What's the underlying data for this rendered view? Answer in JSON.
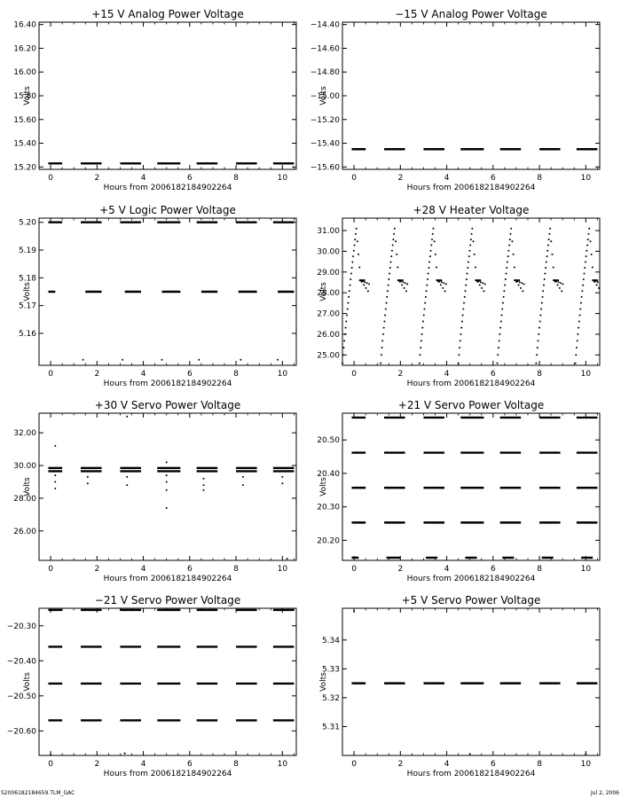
{
  "footer": {
    "source_file": "S2006182184659.TLM_GAC",
    "date": "Jul  2, 2006"
  },
  "chart_data": [
    {
      "type": "scatter",
      "title": "+15 V Analog Power Voltage",
      "xlabel": "Hours from 2006182184902264",
      "ylabel": "Volts",
      "xlim": [
        -0.5,
        10.6
      ],
      "ylim": [
        15.18,
        16.42
      ],
      "xticks": [
        0,
        2,
        4,
        6,
        8,
        10
      ],
      "yticks": [
        15.2,
        15.4,
        15.6,
        15.8,
        16.0,
        16.2,
        16.4
      ],
      "ytick_decimals": 2,
      "segments": [
        {
          "y": 15.23,
          "x": [
            [
              -0.1,
              0.5
            ],
            [
              1.3,
              2.2
            ],
            [
              3.0,
              3.9
            ],
            [
              4.6,
              5.6
            ],
            [
              6.3,
              7.2
            ],
            [
              8.0,
              8.9
            ],
            [
              9.6,
              10.5
            ]
          ]
        }
      ],
      "points": []
    },
    {
      "type": "scatter",
      "title": "−15 V Analog Power Voltage",
      "xlabel": "Hours from 2006182184902264",
      "ylabel": "Volts",
      "xlim": [
        -0.5,
        10.6
      ],
      "ylim": [
        -15.62,
        -14.38
      ],
      "xticks": [
        0,
        2,
        4,
        6,
        8,
        10
      ],
      "yticks": [
        -15.6,
        -15.4,
        -15.2,
        -15.0,
        -14.8,
        -14.6,
        -14.4
      ],
      "ytick_decimals": 2,
      "segments": [
        {
          "y": -15.45,
          "x": [
            [
              -0.1,
              0.5
            ],
            [
              1.3,
              2.2
            ],
            [
              3.0,
              3.9
            ],
            [
              4.6,
              5.6
            ],
            [
              6.3,
              7.2
            ],
            [
              8.0,
              8.9
            ],
            [
              9.6,
              10.5
            ]
          ]
        }
      ],
      "points": []
    },
    {
      "type": "scatter",
      "title": "+5 V Logic Power Voltage",
      "xlabel": "Hours from 2006182184902264",
      "ylabel": "Volts",
      "xlim": [
        -0.5,
        10.6
      ],
      "ylim": [
        5.1485,
        5.2015
      ],
      "xticks": [
        0,
        2,
        4,
        6,
        8,
        10
      ],
      "yticks": [
        5.16,
        5.17,
        5.18,
        5.19,
        5.2
      ],
      "ytick_decimals": 2,
      "segments": [
        {
          "y": 5.2,
          "x": [
            [
              -0.1,
              0.5
            ],
            [
              1.3,
              2.2
            ],
            [
              3.0,
              3.9
            ],
            [
              4.6,
              5.6
            ],
            [
              6.3,
              7.2
            ],
            [
              8.0,
              8.9
            ],
            [
              9.6,
              10.5
            ]
          ]
        },
        {
          "y": 5.175,
          "x": [
            [
              -0.1,
              0.2
            ],
            [
              1.5,
              2.2
            ],
            [
              3.2,
              3.9
            ],
            [
              4.8,
              5.6
            ],
            [
              6.5,
              7.2
            ],
            [
              8.1,
              8.9
            ],
            [
              9.8,
              10.5
            ]
          ]
        }
      ],
      "points": [
        [
          1.4,
          5.1505
        ],
        [
          3.1,
          5.1505
        ],
        [
          4.8,
          5.1505
        ],
        [
          6.4,
          5.1505
        ],
        [
          8.2,
          5.1505
        ],
        [
          9.8,
          5.1505
        ]
      ]
    },
    {
      "type": "scatter",
      "title": "+28 V Heater Voltage",
      "xlabel": "Hours from 2006182184902264",
      "ylabel": "Volts",
      "xlim": [
        -0.5,
        10.6
      ],
      "ylim": [
        24.5,
        31.6
      ],
      "xticks": [
        0,
        2,
        4,
        6,
        8,
        10
      ],
      "yticks": [
        25.0,
        26.0,
        27.0,
        28.0,
        29.0,
        30.0,
        31.0
      ],
      "ytick_decimals": 2,
      "cycles": {
        "ramp_start_x": [
          -0.5,
          1.15,
          2.82,
          4.5,
          6.18,
          7.86,
          9.55
        ],
        "ramp_len": 0.6,
        "tail_len": 0.55,
        "y_low": 24.6,
        "y_peak": 31.1,
        "y_plateau": 28.6,
        "y_tail_end": 28.0
      },
      "segments": [],
      "points": []
    },
    {
      "type": "scatter",
      "title": "+30 V Servo Power Voltage",
      "xlabel": "Hours from 2006182184902264",
      "ylabel": "Volts",
      "xlim": [
        -0.5,
        10.6
      ],
      "ylim": [
        24.2,
        33.2
      ],
      "xticks": [
        0,
        2,
        4,
        6,
        8,
        10
      ],
      "yticks": [
        26.0,
        28.0,
        30.0,
        32.0
      ],
      "ytick_decimals": 2,
      "segments": [
        {
          "y": 29.85,
          "x": [
            [
              -0.1,
              0.5
            ],
            [
              1.3,
              2.2
            ],
            [
              3.0,
              3.9
            ],
            [
              4.6,
              5.6
            ],
            [
              6.3,
              7.2
            ],
            [
              8.0,
              8.9
            ],
            [
              9.6,
              10.5
            ]
          ]
        },
        {
          "y": 29.65,
          "x": [
            [
              -0.1,
              0.5
            ],
            [
              1.3,
              2.2
            ],
            [
              3.0,
              3.9
            ],
            [
              4.6,
              5.6
            ],
            [
              6.3,
              7.2
            ],
            [
              8.0,
              8.9
            ],
            [
              9.6,
              10.5
            ]
          ]
        }
      ],
      "points": [
        [
          0.2,
          31.2
        ],
        [
          0.2,
          29.4
        ],
        [
          0.2,
          29.0
        ],
        [
          0.2,
          28.6
        ],
        [
          1.6,
          29.3
        ],
        [
          1.6,
          28.9
        ],
        [
          3.3,
          29.3
        ],
        [
          3.3,
          28.8
        ],
        [
          3.3,
          33.0
        ],
        [
          5.0,
          29.4
        ],
        [
          5.0,
          29.0
        ],
        [
          5.0,
          28.5
        ],
        [
          5.0,
          30.2
        ],
        [
          5.0,
          27.4
        ],
        [
          6.6,
          29.2
        ],
        [
          6.6,
          28.8
        ],
        [
          6.6,
          28.5
        ],
        [
          8.3,
          29.3
        ],
        [
          8.3,
          28.8
        ],
        [
          10.0,
          29.3
        ],
        [
          10.0,
          28.9
        ],
        [
          10.2,
          24.3
        ]
      ]
    },
    {
      "type": "scatter",
      "title": "+21 V Servo Power Voltage",
      "xlabel": "Hours from 2006182184902264",
      "ylabel": "Volts",
      "xlim": [
        -0.5,
        10.6
      ],
      "ylim": [
        20.14,
        20.58
      ],
      "xticks": [
        0,
        2,
        4,
        6,
        8,
        10
      ],
      "yticks": [
        20.2,
        20.3,
        20.4,
        20.5
      ],
      "ytick_decimals": 2,
      "segments": [
        {
          "y": 20.567,
          "x": [
            [
              -0.1,
              0.5
            ],
            [
              1.3,
              2.2
            ],
            [
              3.0,
              3.9
            ],
            [
              4.6,
              5.6
            ],
            [
              6.3,
              7.2
            ],
            [
              8.0,
              8.9
            ],
            [
              9.6,
              10.5
            ]
          ]
        },
        {
          "y": 20.462,
          "x": [
            [
              -0.1,
              0.5
            ],
            [
              1.3,
              2.2
            ],
            [
              3.0,
              3.9
            ],
            [
              4.6,
              5.6
            ],
            [
              6.3,
              7.2
            ],
            [
              8.0,
              8.9
            ],
            [
              9.6,
              10.5
            ]
          ]
        },
        {
          "y": 20.357,
          "x": [
            [
              -0.1,
              0.5
            ],
            [
              1.3,
              2.2
            ],
            [
              3.0,
              3.9
            ],
            [
              4.6,
              5.6
            ],
            [
              6.3,
              7.2
            ],
            [
              8.0,
              8.9
            ],
            [
              9.6,
              10.5
            ]
          ]
        },
        {
          "y": 20.253,
          "x": [
            [
              -0.1,
              0.5
            ],
            [
              1.3,
              2.2
            ],
            [
              3.0,
              3.9
            ],
            [
              4.6,
              5.6
            ],
            [
              6.3,
              7.2
            ],
            [
              8.0,
              8.9
            ],
            [
              9.6,
              10.5
            ]
          ]
        },
        {
          "y": 20.148,
          "x": [
            [
              -0.1,
              0.2
            ],
            [
              1.4,
              2.0
            ],
            [
              3.1,
              3.6
            ],
            [
              4.8,
              5.3
            ],
            [
              6.4,
              6.9
            ],
            [
              8.1,
              8.6
            ],
            [
              9.8,
              10.3
            ]
          ]
        }
      ],
      "points": []
    },
    {
      "type": "scatter",
      "title": "−21 V Servo Power Voltage",
      "xlabel": "Hours from 2006182184902264",
      "ylabel": "Volts",
      "xlim": [
        -0.5,
        10.6
      ],
      "ylim": [
        -20.67,
        -20.25
      ],
      "xticks": [
        0,
        2,
        4,
        6,
        8,
        10
      ],
      "yticks": [
        -20.6,
        -20.5,
        -20.4,
        -20.3
      ],
      "ytick_decimals": 2,
      "segments": [
        {
          "y": -20.255,
          "x": [
            [
              -0.1,
              0.5
            ],
            [
              1.3,
              2.2
            ],
            [
              3.0,
              3.9
            ],
            [
              4.6,
              5.6
            ],
            [
              6.3,
              7.2
            ],
            [
              8.0,
              8.9
            ],
            [
              9.6,
              10.5
            ]
          ]
        },
        {
          "y": -20.36,
          "x": [
            [
              -0.1,
              0.5
            ],
            [
              1.3,
              2.2
            ],
            [
              3.0,
              3.9
            ],
            [
              4.6,
              5.6
            ],
            [
              6.3,
              7.2
            ],
            [
              8.0,
              8.9
            ],
            [
              9.6,
              10.5
            ]
          ]
        },
        {
          "y": -20.465,
          "x": [
            [
              -0.1,
              0.5
            ],
            [
              1.3,
              2.2
            ],
            [
              3.0,
              3.9
            ],
            [
              4.6,
              5.6
            ],
            [
              6.3,
              7.2
            ],
            [
              8.0,
              8.9
            ],
            [
              9.6,
              10.5
            ]
          ]
        },
        {
          "y": -20.57,
          "x": [
            [
              -0.1,
              0.5
            ],
            [
              1.3,
              2.2
            ],
            [
              3.0,
              3.9
            ],
            [
              4.6,
              5.6
            ],
            [
              6.3,
              7.2
            ],
            [
              8.0,
              8.9
            ],
            [
              9.6,
              10.5
            ]
          ]
        }
      ],
      "points": [
        [
          0.0,
          -20.668
        ],
        [
          3.2,
          -20.664
        ]
      ]
    },
    {
      "type": "scatter",
      "title": "+5 V Servo Power Voltage",
      "xlabel": "Hours from 2006182184902264",
      "ylabel": "Volts",
      "xlim": [
        -0.5,
        10.6
      ],
      "ylim": [
        5.3,
        5.351
      ],
      "xticks": [
        0,
        2,
        4,
        6,
        8,
        10
      ],
      "yticks": [
        5.31,
        5.32,
        5.33,
        5.34
      ],
      "ytick_decimals": 2,
      "segments": [
        {
          "y": 5.325,
          "x": [
            [
              -0.1,
              0.5
            ],
            [
              1.3,
              2.2
            ],
            [
              3.0,
              3.9
            ],
            [
              4.6,
              5.6
            ],
            [
              6.3,
              7.2
            ],
            [
              8.0,
              8.9
            ],
            [
              9.6,
              10.5
            ]
          ]
        }
      ],
      "points": [
        [
          0.0,
          5.35
        ],
        [
          5.0,
          5.3005
        ],
        [
          10.0,
          5.3005
        ]
      ]
    }
  ]
}
